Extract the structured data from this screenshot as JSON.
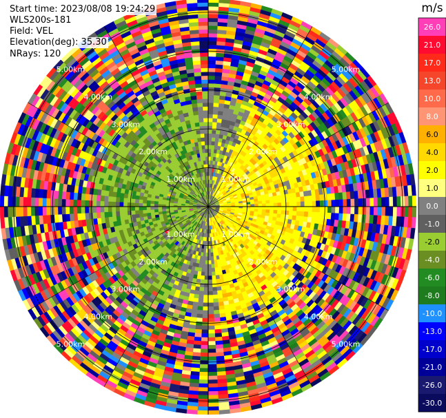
{
  "header": {
    "start_time": "Start time: 2023/08/08 19:24:29",
    "instrument": "WLS200s-181",
    "field": "Field: VEL",
    "elevation": "Elevation(deg): 35.30",
    "nrays": "NRays: 120"
  },
  "chart_data": {
    "type": "heatmap",
    "subtype": "polar-ppi",
    "field": "VEL",
    "units": "m/s",
    "nrays": 120,
    "elevation_deg": 35.3,
    "range_rings_km": [
      1.0,
      2.0,
      3.0,
      4.0,
      5.0
    ],
    "ring_labels": [
      "1.00km",
      "2.00km",
      "3.00km",
      "4.00km",
      "5.00km"
    ],
    "max_range_km": 5.35,
    "colorbar": {
      "label": "m/s",
      "ticks": [
        "26.0",
        "21.0",
        "17.0",
        "13.0",
        "10.0",
        "8.0",
        "6.0",
        "4.0",
        "2.0",
        "1.0",
        "0.0",
        "-1.0",
        "-2.0",
        "-4.0",
        "-6.0",
        "-8.0",
        "-10.0",
        "-13.0",
        "-17.0",
        "-21.0",
        "-26.0",
        "-30.0"
      ],
      "colors": [
        "#ff3eb8",
        "#ff0a30",
        "#ff2a1a",
        "#f5452a",
        "#ff6a4a",
        "#ff9575",
        "#ffb000",
        "#ffd900",
        "#ffff00",
        "#ffff80",
        "#808080",
        "#606060",
        "#9acd32",
        "#6b8e23",
        "#228b22",
        "#1e7b1e",
        "#1e90ff",
        "#0000ff",
        "#0000cd",
        "#000099",
        "#191970",
        "#0b0b5e"
      ]
    },
    "pattern": {
      "positive_sector_center_deg": 100,
      "negative_sector_center_deg": 280,
      "near_field_km": 3.0
    },
    "grid": true
  }
}
